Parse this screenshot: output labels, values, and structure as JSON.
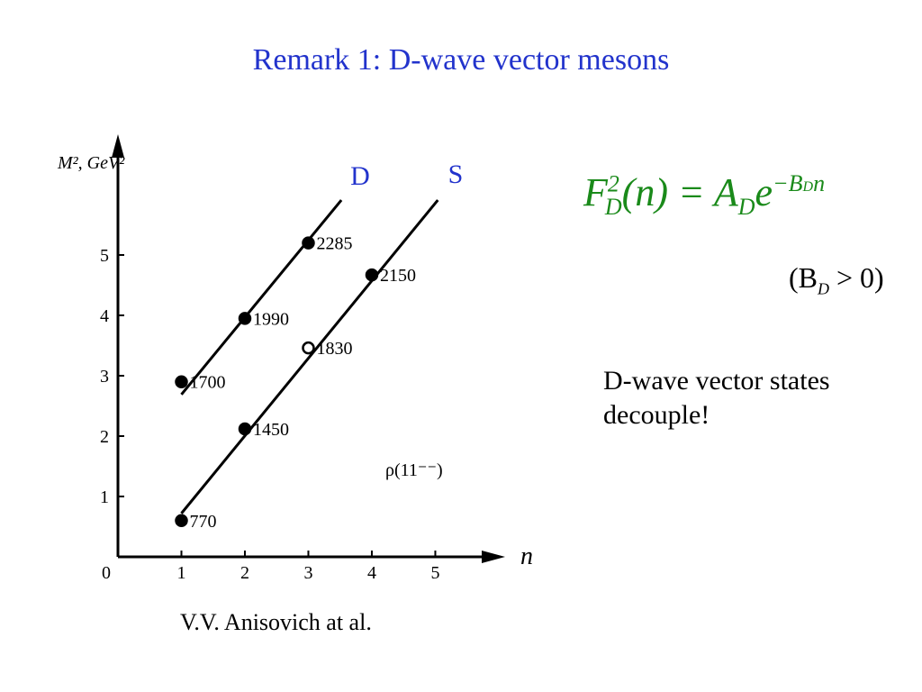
{
  "title": "Remark 1: D-wave vector mesons",
  "formula": {
    "f": "F",
    "f_sup": "2",
    "f_sub": "D",
    "mid": "(n) = A",
    "a_sub": "D",
    "e": "e",
    "exp": "−B",
    "exp_sub": "D",
    "exp_n": "n"
  },
  "condition": {
    "open": "(B",
    "sub": "D",
    "rest": " > 0)"
  },
  "note": [
    "D-wave vector states",
    "decouple!"
  ],
  "credit": "V.V. Anisovich at al.",
  "chart_data": {
    "type": "scatter",
    "y_label": "M², GeV²",
    "x_label": "n",
    "annotation": "ρ(11⁻⁻)",
    "xlim": [
      0,
      6.1
    ],
    "ylim": [
      0,
      7.0
    ],
    "xticks": [
      0,
      1,
      2,
      3,
      4,
      5
    ],
    "yticks": [
      1,
      2,
      3,
      4,
      5
    ],
    "series": [
      {
        "name": "D",
        "color": "#000000",
        "x": [
          1,
          2,
          3
        ],
        "values": [
          2.9,
          3.95,
          5.2
        ],
        "masses": [
          1700,
          1990,
          2285
        ],
        "open": [
          false,
          false,
          false
        ],
        "line_x": [
          1,
          3.52
        ],
        "line_y": [
          2.69,
          5.91
        ]
      },
      {
        "name": "S",
        "color": "#000000",
        "x": [
          1,
          2,
          3,
          4
        ],
        "values": [
          0.6,
          2.12,
          3.46,
          4.67
        ],
        "masses": [
          770,
          1450,
          1830,
          2150
        ],
        "open": [
          false,
          false,
          true,
          false
        ],
        "line_x": [
          1,
          5.04
        ],
        "line_y": [
          0.72,
          5.91
        ]
      }
    ]
  }
}
